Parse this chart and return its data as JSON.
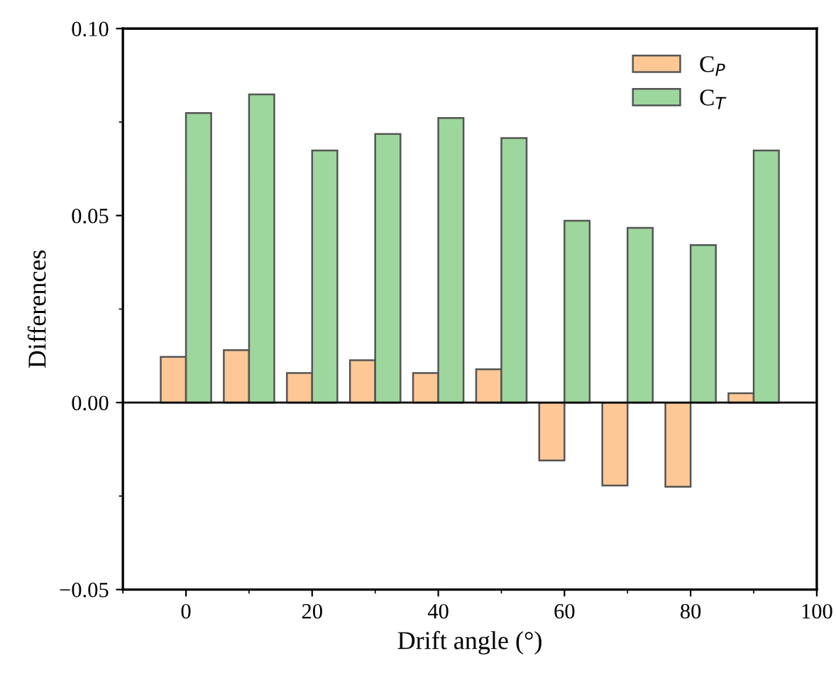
{
  "chart_data": {
    "type": "bar",
    "xlabel": "Drift angle (°)",
    "ylabel": "Differences",
    "x": [
      0,
      10,
      20,
      30,
      40,
      50,
      60,
      70,
      80,
      90
    ],
    "series": [
      {
        "name": "C$_{P}$",
        "color": "#fdc895",
        "values": [
          0.0122,
          0.014,
          0.0079,
          0.0113,
          0.0079,
          0.0089,
          -0.0155,
          -0.0222,
          -0.0225,
          0.0025
        ]
      },
      {
        "name": "C$_{T}$",
        "color": "#9dd79d",
        "values": [
          0.0774,
          0.0824,
          0.0674,
          0.0718,
          0.0761,
          0.0707,
          0.0486,
          0.0467,
          0.0421,
          0.0674
        ]
      }
    ],
    "xlim": [
      -10,
      100
    ],
    "xticks": [
      0,
      20,
      40,
      60,
      80,
      100
    ],
    "ylim": [
      -0.05,
      0.1
    ],
    "yticks": [
      {
        "value": -0.05,
        "label": "−0.05"
      },
      {
        "value": 0.0,
        "label": "0.00"
      },
      {
        "value": 0.05,
        "label": "0.05"
      },
      {
        "value": 0.1,
        "label": "0.10"
      }
    ],
    "ref_lines": [
      {
        "axis": "y",
        "value": 0,
        "color": "#000000"
      }
    ],
    "legend": "top right",
    "grid": false
  }
}
